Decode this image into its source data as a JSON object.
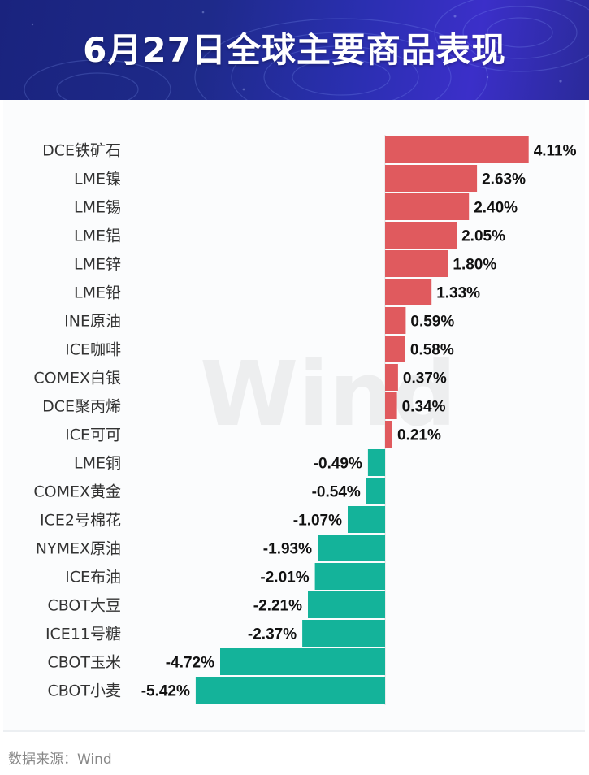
{
  "header": {
    "title": "6月27日全球主要商品表现"
  },
  "footer": {
    "source": "数据来源：Wind"
  },
  "watermark": "Wind",
  "colors": {
    "positive": "#e05a5e",
    "negative": "#14b39a",
    "banner": "#1e2a8a"
  },
  "chart_data": {
    "type": "bar",
    "orientation": "horizontal",
    "unit": "%",
    "categories": [
      "DCE铁矿石",
      "LME镍",
      "LME锡",
      "LME铝",
      "LME锌",
      "LME铅",
      "INE原油",
      "ICE咖啡",
      "COMEX白银",
      "DCE聚丙烯",
      "ICE可可",
      "LME铜",
      "COMEX黄金",
      "ICE2号棉花",
      "NYMEX原油",
      "ICE布油",
      "CBOT大豆",
      "ICE11号糖",
      "CBOT玉米",
      "CBOT小麦"
    ],
    "values": [
      4.11,
      2.63,
      2.4,
      2.05,
      1.8,
      1.33,
      0.59,
      0.58,
      0.37,
      0.34,
      0.21,
      -0.49,
      -0.54,
      -1.07,
      -1.93,
      -2.01,
      -2.21,
      -2.37,
      -4.72,
      -5.42
    ],
    "data_labels": [
      "4.11%",
      "2.63%",
      "2.40%",
      "2.05%",
      "1.80%",
      "1.33%",
      "0.59%",
      "0.58%",
      "0.37%",
      "0.34%",
      "0.21%",
      "-0.49%",
      "-0.54%",
      "-1.07%",
      "-1.93%",
      "-2.01%",
      "-2.21%",
      "-2.37%",
      "-4.72%",
      "-5.42%"
    ],
    "grid": false,
    "legend": "none"
  }
}
